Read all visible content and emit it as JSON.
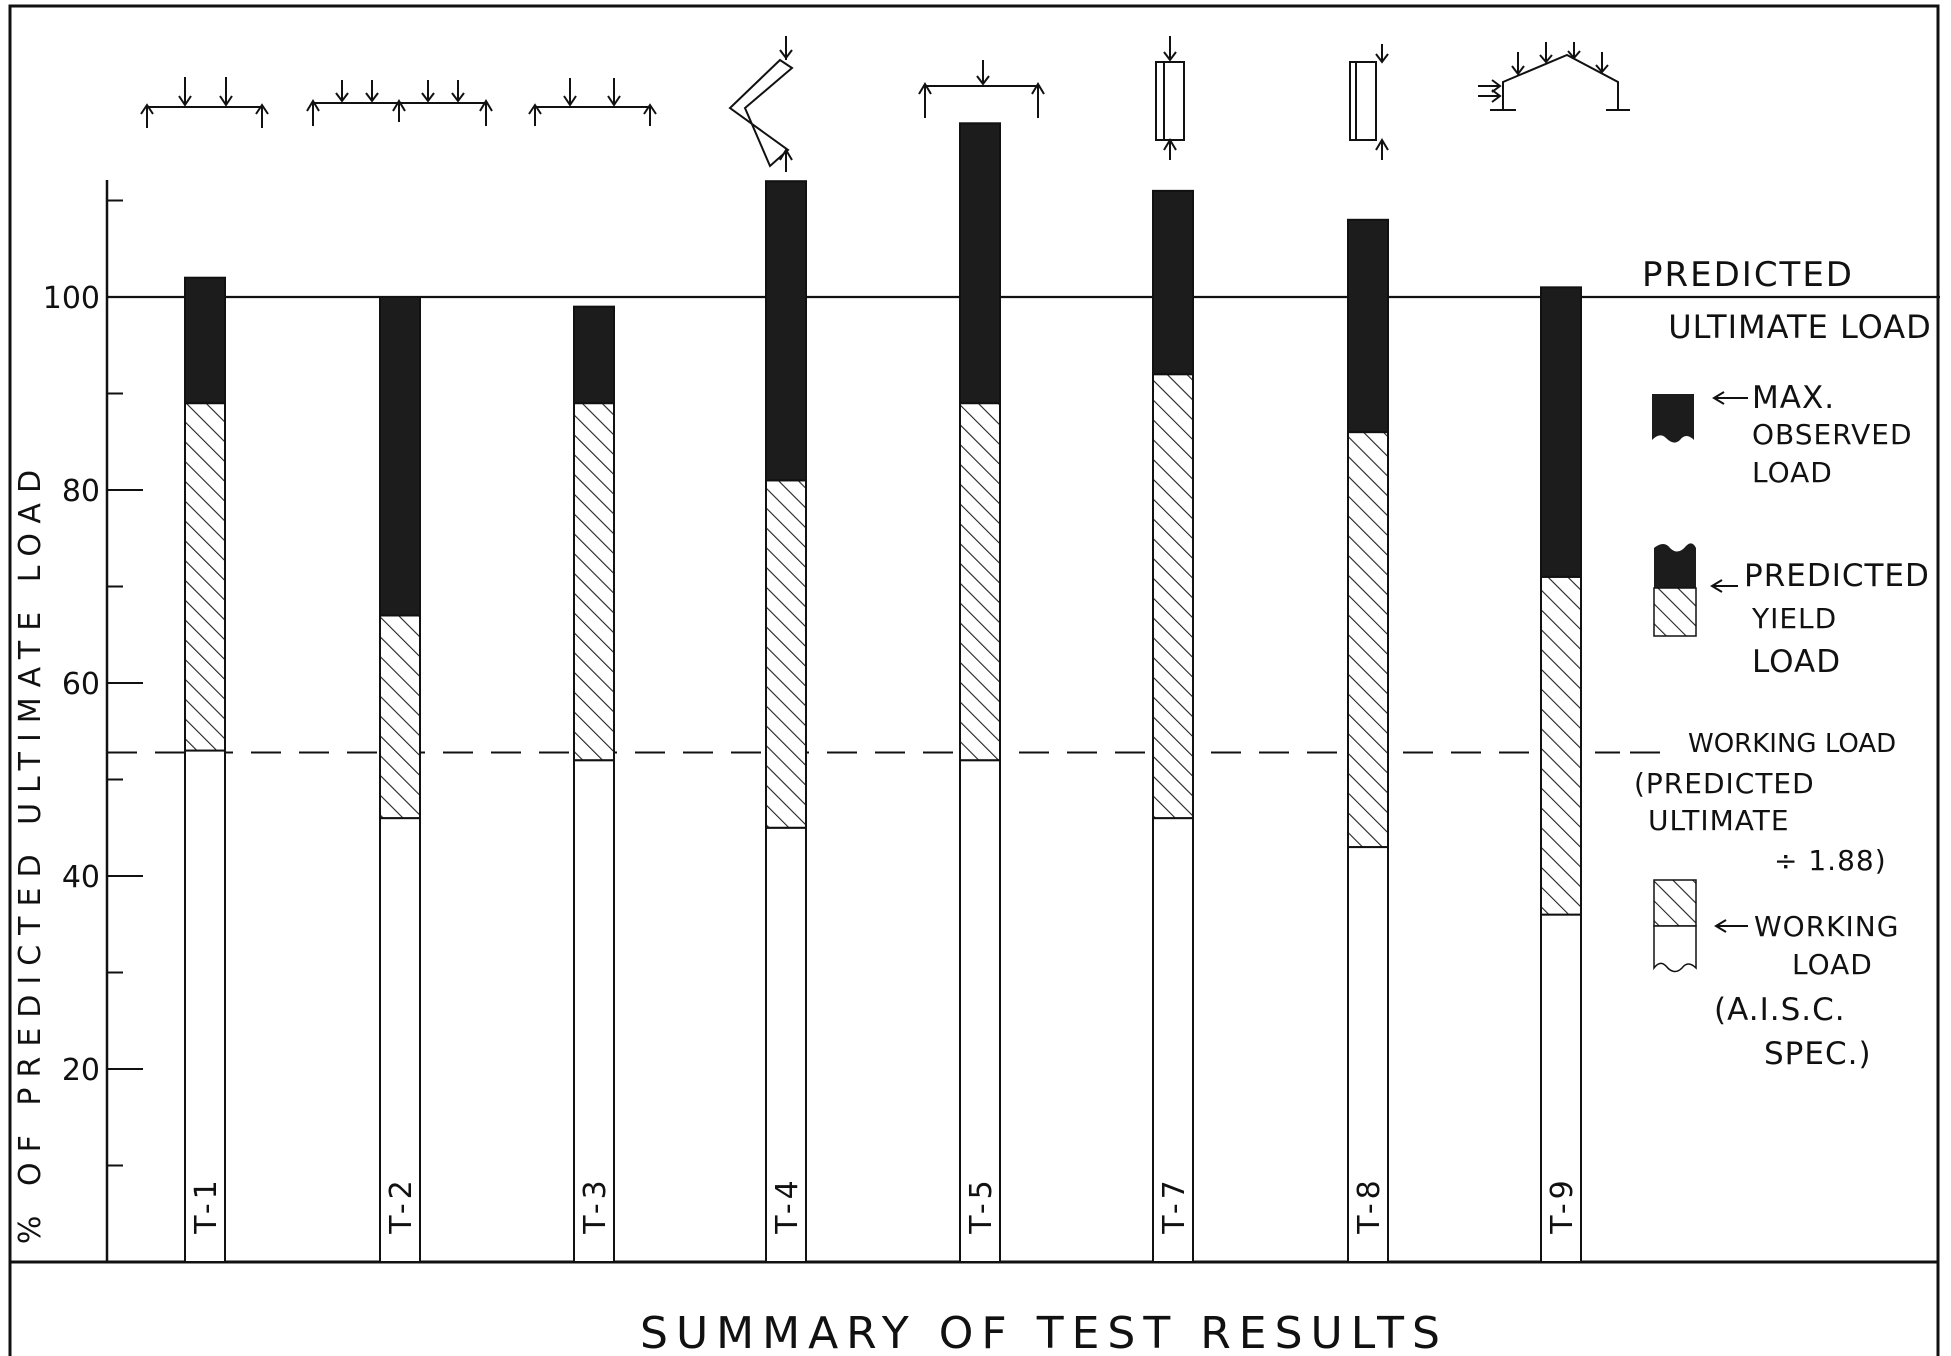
{
  "chart_data": {
    "type": "bar",
    "title": "SUMMARY OF TEST RESULTS",
    "ylabel": "% OF PREDICTED ULTIMATE LOAD",
    "ylim": [
      0,
      130
    ],
    "yticks_labeled": [
      20,
      40,
      60,
      80,
      100
    ],
    "categories": [
      "T-1",
      "T-2",
      "T-3",
      "T-4",
      "T-5",
      "T-7",
      "T-8",
      "T-9"
    ],
    "series": [
      {
        "name": "WORKING LOAD (A.I.S.C. SPEC.)",
        "values": [
          53,
          46,
          52,
          45,
          52,
          46,
          43,
          36
        ]
      },
      {
        "name": "PREDICTED YIELD LOAD",
        "values": [
          89,
          67,
          89,
          81,
          89,
          92,
          86,
          71
        ]
      },
      {
        "name": "MAX. OBSERVED LOAD",
        "values": [
          102,
          100,
          99,
          112,
          118,
          111,
          108,
          101
        ]
      }
    ],
    "reference_lines": {
      "predicted_ultimate": {
        "value": 100,
        "label_line1": "PREDICTED",
        "label_line2": "ULTIMATE LOAD"
      },
      "working_load": {
        "value": 53,
        "label_line1": "WORKING LOAD",
        "label_line2": "(PREDICTED",
        "label_line3": "ULTIMATE",
        "label_line4": "÷ 1.88)"
      }
    },
    "legend": {
      "max_observed": [
        "MAX.",
        "OBSERVED",
        "LOAD"
      ],
      "predicted_yield": [
        "PREDICTED",
        "YIELD",
        "LOAD"
      ],
      "working": [
        "WORKING",
        "LOAD",
        "(A.I.S.C.",
        "SPEC.)"
      ]
    },
    "colors": {
      "max": "#1c1c1c",
      "hatch": "#222222",
      "line": "#111111"
    },
    "loading_diagram_icons": [
      "two-point-loaded-beam-icon",
      "four-point-continuous-beam-icon",
      "two-point-loaded-beam-icon",
      "knee-frame-icon",
      "single-point-loaded-beam-icon",
      "axially-loaded-column-icon",
      "eccentric-column-icon",
      "gabled-frame-icon"
    ]
  }
}
